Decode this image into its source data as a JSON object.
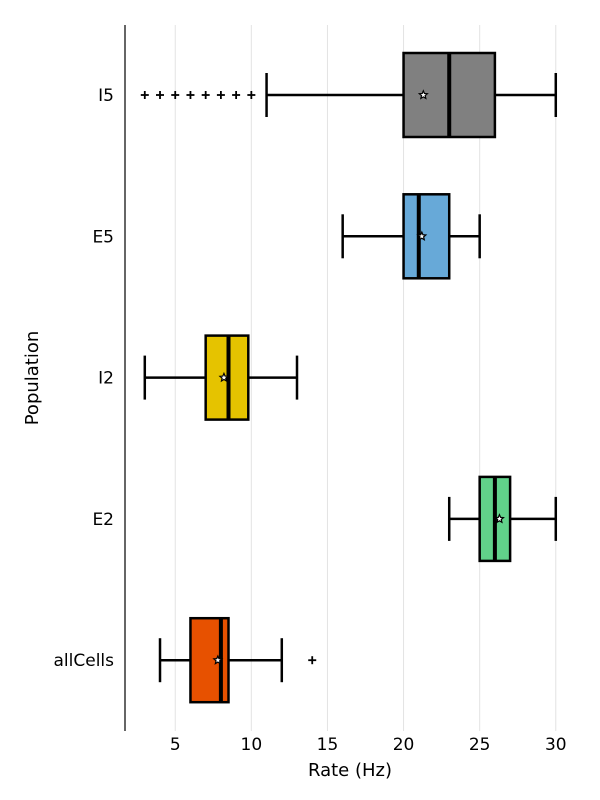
{
  "chart_data": {
    "type": "boxplot",
    "orientation": "horizontal",
    "xlabel": "Rate (Hz)",
    "ylabel": "Population",
    "xlim": [
      1.7,
      31
    ],
    "xticks": [
      5,
      10,
      15,
      20,
      25,
      30
    ],
    "xtick_labels": [
      "5",
      "10",
      "15",
      "20",
      "25",
      "30"
    ],
    "grid": "vertical",
    "categories": [
      "I5",
      "E5",
      "I2",
      "E2",
      "allCells"
    ],
    "boxes": [
      {
        "name": "I5",
        "color": "#808080",
        "whisker_low": 11,
        "q1": 20,
        "median": 23,
        "q3": 26,
        "whisker_high": 30,
        "mean": 21.3,
        "outliers": [
          3,
          4,
          5,
          6,
          7,
          8,
          9,
          10
        ]
      },
      {
        "name": "E5",
        "color": "#67a9d8",
        "whisker_low": 16,
        "q1": 20,
        "median": 21,
        "q3": 23,
        "whisker_high": 25,
        "mean": 21.2,
        "outliers": []
      },
      {
        "name": "I2",
        "color": "#e5c300",
        "whisker_low": 3,
        "q1": 7,
        "median": 8.5,
        "q3": 9.8,
        "whisker_high": 13,
        "mean": 8.2,
        "outliers": []
      },
      {
        "name": "E2",
        "color": "#61d28a",
        "whisker_low": 23,
        "q1": 25,
        "median": 26,
        "q3": 27,
        "whisker_high": 30,
        "mean": 26.3,
        "outliers": []
      },
      {
        "name": "allCells",
        "color": "#e75100",
        "whisker_low": 4,
        "q1": 6,
        "median": 8,
        "q3": 8.5,
        "whisker_high": 12,
        "mean": 7.8,
        "outliers": [
          14
        ]
      }
    ]
  }
}
